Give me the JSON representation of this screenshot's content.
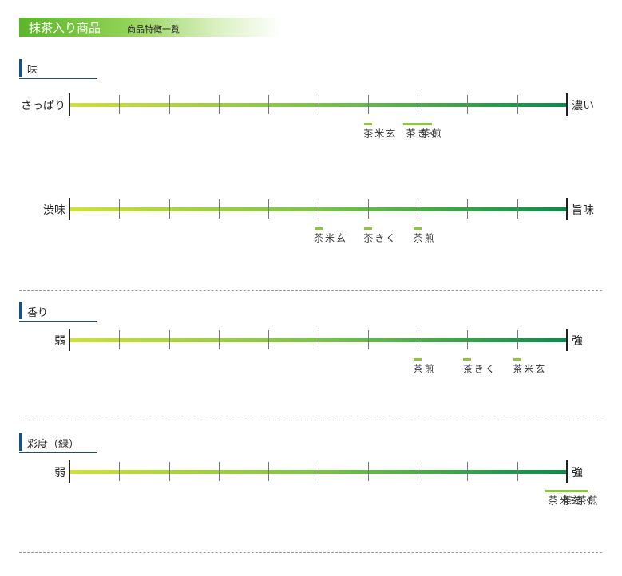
{
  "header": {
    "title": "抹茶入り商品",
    "subtitle": "商品特徴一覧"
  },
  "sections": {
    "taste": "味",
    "aroma": "香り",
    "color": "彩度（緑）"
  },
  "scales": {
    "s1": {
      "left": "さっぱり",
      "right": "濃い"
    },
    "s2": {
      "left": "渋味",
      "right": "旨味"
    },
    "s3": {
      "left": "弱",
      "right": "強"
    },
    "s4": {
      "left": "弱",
      "right": "強"
    }
  },
  "markers": {
    "s1": [
      {
        "position": 6,
        "texts": [
          "玄米茶"
        ]
      },
      {
        "position": 7,
        "texts": [
          "煎茶",
          "くき茶"
        ]
      }
    ],
    "s2": [
      {
        "position": 5,
        "texts": [
          "玄米茶"
        ]
      },
      {
        "position": 6,
        "texts": [
          "くき茶"
        ]
      },
      {
        "position": 7,
        "texts": [
          "煎茶"
        ]
      }
    ],
    "s3": [
      {
        "position": 7,
        "texts": [
          "煎茶"
        ]
      },
      {
        "position": 8,
        "texts": [
          "くき茶"
        ]
      },
      {
        "position": 9,
        "texts": [
          "玄米茶"
        ]
      }
    ],
    "s4": [
      {
        "position": 10,
        "texts": [
          "煎茶",
          "くき茶",
          "玄米茶"
        ]
      }
    ]
  },
  "scale_steps": 10,
  "colors": {
    "bar_start": "#cfe03a",
    "bar_end": "#0b8a4c",
    "marker": "#8cc63f",
    "section_accent": "#1f4e79"
  }
}
